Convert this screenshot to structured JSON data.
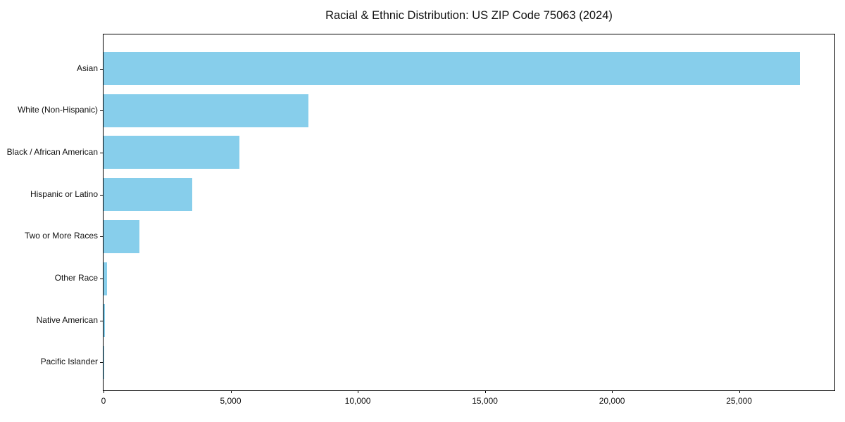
{
  "chart_data": {
    "type": "bar",
    "orientation": "horizontal",
    "title": "Racial & Ethnic Distribution: US ZIP Code 75063 (2024)",
    "categories": [
      "Asian",
      "White (Non-Hispanic)",
      "Black / African American",
      "Hispanic or Latino",
      "Two or More Races",
      "Other Race",
      "Native American",
      "Pacific Islander"
    ],
    "values": [
      27400,
      8050,
      5350,
      3480,
      1400,
      150,
      60,
      10
    ],
    "xlabel": "",
    "ylabel": "",
    "xlim": [
      0,
      28750
    ],
    "xticks": [
      0,
      5000,
      10000,
      15000,
      20000,
      25000
    ],
    "xtick_labels": [
      "0",
      "5,000",
      "10,000",
      "15,000",
      "20,000",
      "25,000"
    ],
    "bar_color": "#87CEEB",
    "axis_color": "#000000",
    "text_color": "#111111",
    "background_color": "#ffffff",
    "grid": false,
    "legend": "none"
  }
}
